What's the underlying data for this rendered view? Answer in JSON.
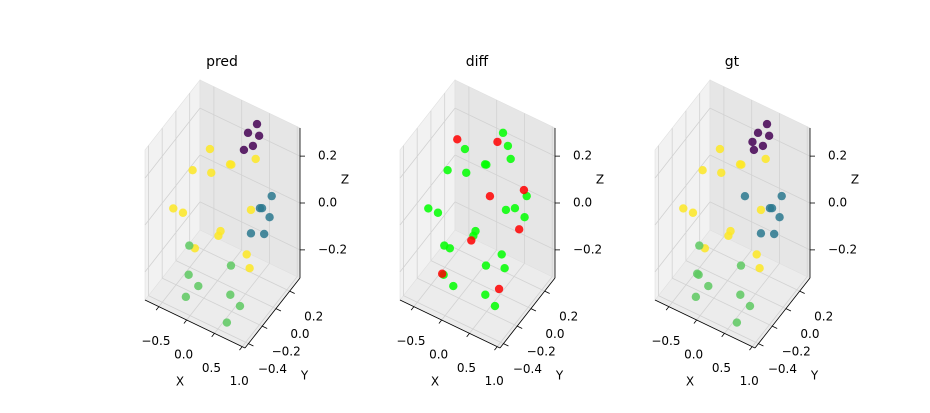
{
  "chart_data": [
    {
      "type": "scatter3d",
      "title": "pred",
      "xlabel": "X",
      "ylabel": "Y",
      "zlabel": "Z",
      "xlim": [
        -0.75,
        1.05
      ],
      "ylim": [
        -0.45,
        0.35
      ],
      "zlim": [
        -0.32,
        0.32
      ],
      "xticks": [
        {
          "value": -0.5,
          "label": "−0.5"
        },
        {
          "value": 0,
          "label": "0.0"
        },
        0.5,
        {
          "value": 1,
          "label": "1.0"
        }
      ],
      "yticks": [
        {
          "value": -0.4,
          "label": "−0.4"
        },
        {
          "value": -0.2,
          "label": "−0.2"
        },
        {
          "value": 0,
          "label": "0.0"
        },
        0.2
      ],
      "zticks": [
        {
          "value": -0.2,
          "label": "−0.2"
        },
        {
          "value": 0,
          "label": "0.0"
        },
        0.2
      ],
      "series": [
        {
          "color": "#fde725",
          "x": [
            -0.55,
            -0.45,
            -0.3,
            -0.1,
            0.1,
            0.3,
            0.5,
            0.7,
            -0.5,
            -0.2,
            0.2,
            0.6,
            0.0,
            0.4
          ],
          "y": [
            -0.2,
            0.0,
            0.15,
            -0.25,
            0.1,
            -0.2,
            0.15,
            -0.1,
            -0.1,
            0.05,
            -0.15,
            0.0,
            0.2,
            0.1
          ],
          "z": [
            0.0,
            0.1,
            0.05,
            -0.1,
            0.15,
            0.0,
            0.2,
            -0.15,
            -0.05,
            0.2,
            -0.05,
            0.05,
            0.1,
            -0.2
          ]
        },
        {
          "color": "#440154",
          "x": [
            0.3,
            0.4,
            0.5,
            0.45,
            0.35
          ],
          "y": [
            0.2,
            0.25,
            0.2,
            0.15,
            0.1
          ],
          "z": [
            0.27,
            0.3,
            0.28,
            0.25,
            0.24
          ]
        },
        {
          "color": "#2a788e",
          "x": [
            0.7,
            0.8,
            0.9,
            0.75,
            0.85,
            0.6
          ],
          "y": [
            0.05,
            0.0,
            -0.05,
            0.15,
            0.1,
            0.0
          ],
          "z": [
            0.05,
            0.08,
            0.0,
            -0.02,
            0.1,
            -0.05
          ]
        },
        {
          "color": "#5ec962",
          "x": [
            -0.2,
            -0.15,
            -0.1,
            -0.2,
            0.55,
            0.6,
            0.65,
            0.6
          ],
          "y": [
            -0.25,
            -0.3,
            -0.2,
            -0.3,
            -0.25,
            -0.3,
            -0.2,
            -0.35
          ],
          "z": [
            -0.1,
            -0.2,
            -0.28,
            -0.3,
            -0.1,
            -0.2,
            -0.28,
            -0.3
          ]
        }
      ]
    },
    {
      "type": "scatter3d",
      "title": "diff",
      "xlabel": "X",
      "ylabel": "Y",
      "zlabel": "Z",
      "xlim": [
        -0.75,
        1.05
      ],
      "ylim": [
        -0.45,
        0.35
      ],
      "zlim": [
        -0.32,
        0.32
      ],
      "xticks": [
        {
          "value": -0.5,
          "label": "−0.5"
        },
        {
          "value": 0,
          "label": "0.0"
        },
        0.5,
        {
          "value": 1,
          "label": "1.0"
        }
      ],
      "yticks": [
        {
          "value": -0.4,
          "label": "−0.4"
        },
        {
          "value": -0.2,
          "label": "−0.2"
        },
        {
          "value": 0,
          "label": "0.0"
        },
        0.2
      ],
      "zticks": [
        {
          "value": -0.2,
          "label": "−0.2"
        },
        {
          "value": 0,
          "label": "0.0"
        },
        0.2
      ],
      "series": [
        {
          "color": "#00ff00",
          "x": [
            -0.55,
            -0.45,
            -0.3,
            -0.1,
            0.1,
            0.3,
            0.5,
            0.7,
            -0.5,
            -0.2,
            0.2,
            0.6,
            0.0,
            0.4,
            0.3,
            0.45,
            0.7,
            0.85,
            0.75,
            -0.2,
            -0.15,
            -0.1,
            0.55,
            0.6,
            0.65
          ],
          "y": [
            -0.2,
            0.0,
            0.15,
            -0.25,
            0.1,
            -0.2,
            0.15,
            -0.1,
            -0.1,
            0.05,
            -0.15,
            0.0,
            0.2,
            0.1,
            0.2,
            0.15,
            0.05,
            0.1,
            0.15,
            -0.25,
            -0.3,
            -0.2,
            -0.25,
            -0.3,
            -0.2
          ],
          "z": [
            0.0,
            0.1,
            0.05,
            -0.1,
            0.15,
            0.0,
            0.2,
            -0.15,
            -0.05,
            0.2,
            -0.05,
            0.05,
            0.1,
            -0.2,
            0.27,
            0.25,
            0.05,
            0.1,
            -0.02,
            -0.1,
            -0.2,
            -0.28,
            -0.1,
            -0.2,
            -0.28
          ]
        },
        {
          "color": "#ff0000",
          "x": [
            -0.4,
            0.1,
            0.25,
            0.8,
            0.9,
            -0.3,
            0.6,
            0.2
          ],
          "y": [
            0.1,
            -0.1,
            0.05,
            0.1,
            -0.05,
            -0.2,
            -0.1,
            0.2
          ],
          "z": [
            0.2,
            -0.1,
            0.05,
            0.12,
            0.02,
            -0.25,
            -0.25,
            0.22
          ]
        }
      ]
    },
    {
      "type": "scatter3d",
      "title": "gt",
      "xlabel": "X",
      "ylabel": "Y",
      "zlabel": "Z",
      "xlim": [
        -0.75,
        1.05
      ],
      "ylim": [
        -0.45,
        0.35
      ],
      "zlim": [
        -0.32,
        0.32
      ],
      "xticks": [
        {
          "value": -0.5,
          "label": "−0.5"
        },
        {
          "value": 0,
          "label": "0.0"
        },
        0.5,
        {
          "value": 1,
          "label": "1.0"
        }
      ],
      "yticks": [
        {
          "value": -0.4,
          "label": "−0.4"
        },
        {
          "value": -0.2,
          "label": "−0.2"
        },
        {
          "value": 0,
          "label": "0.0"
        },
        0.2
      ],
      "zticks": [
        {
          "value": -0.2,
          "label": "−0.2"
        },
        {
          "value": 0,
          "label": "0.0"
        },
        0.2
      ],
      "series": [
        {
          "color": "#fde725",
          "x": [
            -0.55,
            -0.45,
            -0.3,
            -0.1,
            0.1,
            0.3,
            0.5,
            0.7,
            -0.5,
            -0.2,
            0.2,
            0.6,
            0.0,
            0.4
          ],
          "y": [
            -0.2,
            0.0,
            0.15,
            -0.25,
            0.1,
            -0.2,
            0.15,
            -0.1,
            -0.1,
            0.05,
            -0.15,
            0.0,
            0.2,
            0.1
          ],
          "z": [
            0.0,
            0.1,
            0.05,
            -0.1,
            0.15,
            0.0,
            0.2,
            -0.15,
            -0.05,
            0.2,
            -0.05,
            0.05,
            0.1,
            -0.2
          ]
        },
        {
          "color": "#440154",
          "x": [
            0.3,
            0.4,
            0.5,
            0.45,
            0.35,
            0.2
          ],
          "y": [
            0.2,
            0.25,
            0.2,
            0.15,
            0.1,
            0.2
          ],
          "z": [
            0.27,
            0.3,
            0.28,
            0.25,
            0.24,
            0.22
          ]
        },
        {
          "color": "#2a788e",
          "x": [
            0.7,
            0.8,
            0.9,
            0.75,
            0.85,
            0.6,
            0.25
          ],
          "y": [
            0.05,
            0.0,
            -0.05,
            0.15,
            0.1,
            0.0,
            0.05
          ],
          "z": [
            0.05,
            0.08,
            0.0,
            -0.02,
            0.1,
            -0.05,
            0.05
          ]
        },
        {
          "color": "#5ec962",
          "x": [
            -0.2,
            -0.15,
            -0.1,
            -0.2,
            0.55,
            0.6,
            0.65,
            0.6,
            -0.3
          ],
          "y": [
            -0.25,
            -0.3,
            -0.2,
            -0.3,
            -0.25,
            -0.3,
            -0.2,
            -0.35,
            -0.2
          ],
          "z": [
            -0.1,
            -0.2,
            -0.28,
            -0.3,
            -0.1,
            -0.2,
            -0.28,
            -0.3,
            -0.25
          ]
        }
      ]
    }
  ]
}
